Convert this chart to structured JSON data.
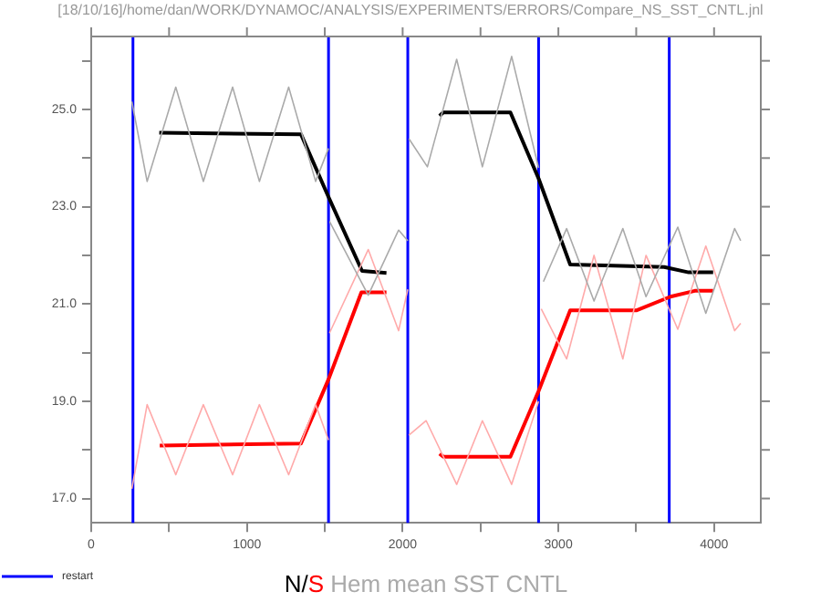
{
  "chart_data": {
    "type": "line",
    "title": "N/S Hem mean SST CNTL",
    "annotations": [
      "[18/10/16]/home/dan/WORK/DYNAMOC/ANALYSIS/EXPERIMENTS/ERRORS/Compare_NS_SST_CNTL.jnl"
    ],
    "xlim": [
      0,
      4300
    ],
    "xticks": [
      0,
      {
        "value": 500,
        "label": null
      },
      1000,
      {
        "value": 1500,
        "label": null
      },
      2000,
      {
        "value": 2500,
        "label": null
      },
      3000,
      {
        "value": 3500,
        "label": null
      },
      4000
    ],
    "ylim": [
      16.5,
      26.5
    ],
    "yticks": [
      {
        "value": 17,
        "label": "17.0"
      },
      {
        "value": 18,
        "label": null
      },
      {
        "value": 19,
        "label": "19.0"
      },
      {
        "value": 20,
        "label": null
      },
      {
        "value": 21,
        "label": "21.0"
      },
      {
        "value": 22,
        "label": null
      },
      {
        "value": 23,
        "label": "23.0"
      },
      {
        "value": 24,
        "label": null
      },
      {
        "value": 25,
        "label": "25.0"
      },
      {
        "value": 26,
        "label": null
      }
    ],
    "grid": false,
    "marker": "none",
    "legend": "bottom left",
    "ref_lines": [
      {
        "axis": "x",
        "value": 268,
        "label": "restart",
        "color": "#0000ff"
      },
      {
        "axis": "x",
        "value": 1524,
        "label": null,
        "color": "#0000ff"
      },
      {
        "axis": "x",
        "value": 2033,
        "label": null,
        "color": "#0000ff"
      },
      {
        "axis": "x",
        "value": 2873,
        "label": null,
        "color": "#0000ff"
      },
      {
        "axis": "x",
        "value": 3712,
        "label": null,
        "color": "#0000ff"
      }
    ],
    "series": [
      {
        "color": "#aaaaaa",
        "x": [
          261,
          359,
          543,
          720,
          908,
          1080,
          1268,
          1441,
          1524,
          null,
          1530,
          1779,
          1974,
          2033,
          null,
          2040,
          2159,
          2347,
          2512,
          2700,
          2873,
          null,
          2904,
          3053,
          3229,
          3414,
          3563,
          3767,
          3947,
          4132,
          4171
        ],
        "values": [
          25.16,
          23.52,
          25.46,
          23.52,
          25.46,
          23.52,
          25.46,
          23.52,
          24.2,
          null,
          22.7,
          21.18,
          22.52,
          22.3,
          null,
          24.4,
          23.82,
          26.03,
          23.82,
          26.09,
          23.8,
          null,
          21.46,
          22.55,
          21.06,
          22.55,
          21.15,
          22.58,
          20.81,
          22.55,
          22.3
        ]
      },
      {
        "color": "#ffaaaa",
        "x": [
          261,
          359,
          543,
          720,
          908,
          1080,
          1268,
          1441,
          1524,
          null,
          1530,
          1779,
          1974,
          2033,
          null,
          2040,
          2151,
          2347,
          2512,
          2700,
          2873,
          null,
          2890,
          3053,
          3229,
          3414,
          3563,
          3767,
          3947,
          4132,
          4171
        ],
        "values": [
          17.2,
          18.93,
          17.49,
          18.93,
          17.49,
          18.93,
          17.49,
          18.93,
          18.2,
          null,
          20.4,
          22.12,
          20.45,
          21.3,
          null,
          18.3,
          18.6,
          17.29,
          18.6,
          17.29,
          19.0,
          null,
          20.9,
          19.87,
          22.0,
          19.87,
          22.0,
          20.48,
          22.19,
          20.45,
          20.6
        ]
      },
      {
        "color": "#000000",
        "x": [
          437,
          1347,
          1524,
          1739,
          1896,
          null,
          2237,
          2261,
          2692,
          2873,
          3076,
          3680,
          3837,
          3994
        ],
        "values": [
          24.52,
          24.49,
          23.2,
          21.68,
          21.64,
          null,
          24.87,
          24.94,
          24.94,
          23.58,
          21.81,
          21.76,
          21.65,
          21.65
        ]
      },
      {
        "color": "#ff0000",
        "x": [
          440,
          1347,
          1524,
          1735,
          1896,
          null,
          2237,
          2261,
          2692,
          2873,
          3076,
          3504,
          3720,
          3876,
          3994
        ],
        "values": [
          18.09,
          18.13,
          19.45,
          21.24,
          21.24,
          null,
          17.92,
          17.86,
          17.86,
          19.21,
          20.87,
          20.87,
          21.15,
          21.27,
          21.27
        ]
      }
    ]
  }
}
